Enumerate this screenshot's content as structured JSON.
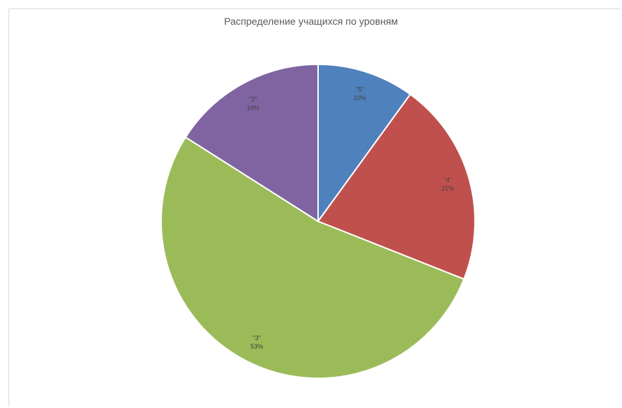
{
  "chart_data": {
    "type": "pie",
    "title": "Распределение учащихся по уровням",
    "categories": [
      "\"5\"",
      "\"4\"",
      "\"3\"",
      "\"2\""
    ],
    "values": [
      10,
      21,
      53,
      16
    ],
    "labels": [
      "10%",
      "21%",
      "53%",
      "16%"
    ],
    "colors": [
      "#4f81bd",
      "#c0504d",
      "#9bbb59",
      "#8064a2"
    ],
    "legend": "none"
  }
}
